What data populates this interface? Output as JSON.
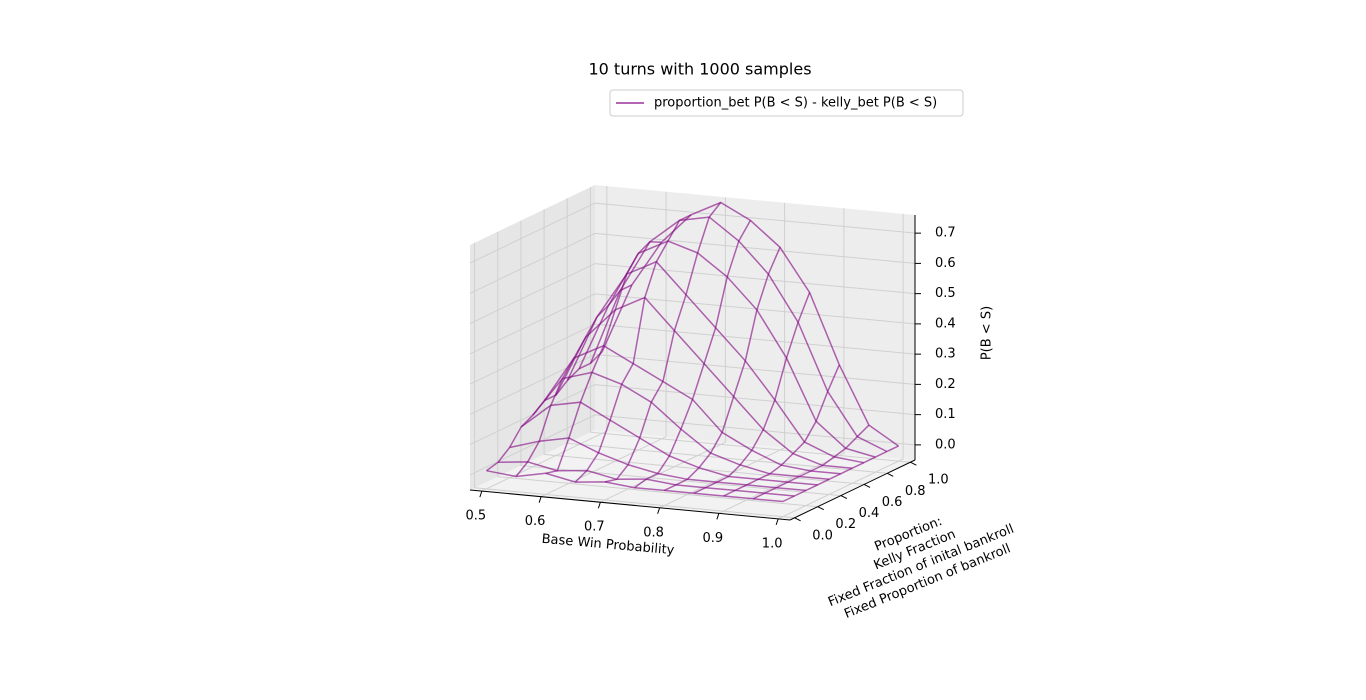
{
  "chart_data": {
    "type": "wireframe3d",
    "title": "10 turns with 1000 samples",
    "xlabel": "Base Win Probability",
    "ylabel": [
      "Proportion:",
      "Kelly Fraction",
      "Fixed Fraction of inital bankroll",
      "Fixed Proportion of bankroll"
    ],
    "zlabel": "P(B < S)",
    "x": [
      0.5,
      0.55,
      0.6,
      0.65,
      0.7,
      0.75,
      0.8,
      0.85,
      0.9,
      0.95,
      1.0
    ],
    "y": [
      0,
      0.1,
      0.2,
      0.3,
      0.4,
      0.5,
      0.6,
      0.7,
      0.8,
      0.9,
      1.0
    ],
    "series": [
      {
        "name": "proportion_bet P(B < S) - kelly_bet P(B < S)",
        "color": "#800080",
        "alpha": 0.6,
        "values": [
          [
            0.01,
            0.0,
            0.02,
            0.0,
            0.01,
            0.0,
            0.0,
            0.0,
            0.0,
            0.0,
            0.0
          ],
          [
            0.02,
            0.03,
            0.01,
            0.02,
            0.0,
            0.01,
            0.0,
            0.0,
            0.0,
            0.0,
            0.0
          ],
          [
            0.05,
            0.08,
            0.1,
            0.06,
            0.03,
            0.01,
            0.0,
            0.0,
            0.0,
            0.0,
            0.0
          ],
          [
            0.1,
            0.18,
            0.2,
            0.15,
            0.1,
            0.05,
            0.02,
            0.0,
            0.0,
            0.0,
            0.0
          ],
          [
            0.12,
            0.25,
            0.28,
            0.25,
            0.2,
            0.12,
            0.05,
            0.02,
            0.0,
            0.0,
            0.0
          ],
          [
            0.15,
            0.3,
            0.35,
            0.3,
            0.25,
            0.2,
            0.1,
            0.05,
            0.01,
            0.0,
            0.0
          ],
          [
            0.15,
            0.35,
            0.45,
            0.5,
            0.4,
            0.3,
            0.2,
            0.1,
            0.03,
            0.0,
            0.0
          ],
          [
            0.18,
            0.4,
            0.55,
            0.6,
            0.5,
            0.4,
            0.3,
            0.18,
            0.05,
            0.01,
            0.0
          ],
          [
            0.2,
            0.42,
            0.6,
            0.65,
            0.62,
            0.55,
            0.45,
            0.3,
            0.1,
            0.02,
            0.0
          ],
          [
            0.2,
            0.45,
            0.62,
            0.7,
            0.72,
            0.65,
            0.55,
            0.4,
            0.18,
            0.04,
            0.0
          ],
          [
            0.22,
            0.45,
            0.6,
            0.7,
            0.75,
            0.7,
            0.62,
            0.48,
            0.25,
            0.06,
            0.0
          ]
        ]
      }
    ],
    "xlim": [
      0.48,
      1.02
    ],
    "ylim": [
      -0.04,
      1.04
    ],
    "zlim": [
      -0.05,
      0.76
    ],
    "xticks": [
      0.5,
      0.6,
      0.7,
      0.8,
      0.9,
      {
        "value": 1,
        "label": "1.0"
      }
    ],
    "yticks": [
      {
        "value": 0,
        "label": "0.0"
      },
      0.2,
      0.4,
      0.6,
      0.8,
      {
        "value": 1,
        "label": "1.0"
      }
    ],
    "zticks": [
      {
        "value": 0,
        "label": "0.0"
      },
      0.1,
      0.2,
      0.3,
      0.4,
      0.5,
      0.6,
      0.7
    ],
    "grid": true,
    "legend": "upper right"
  }
}
